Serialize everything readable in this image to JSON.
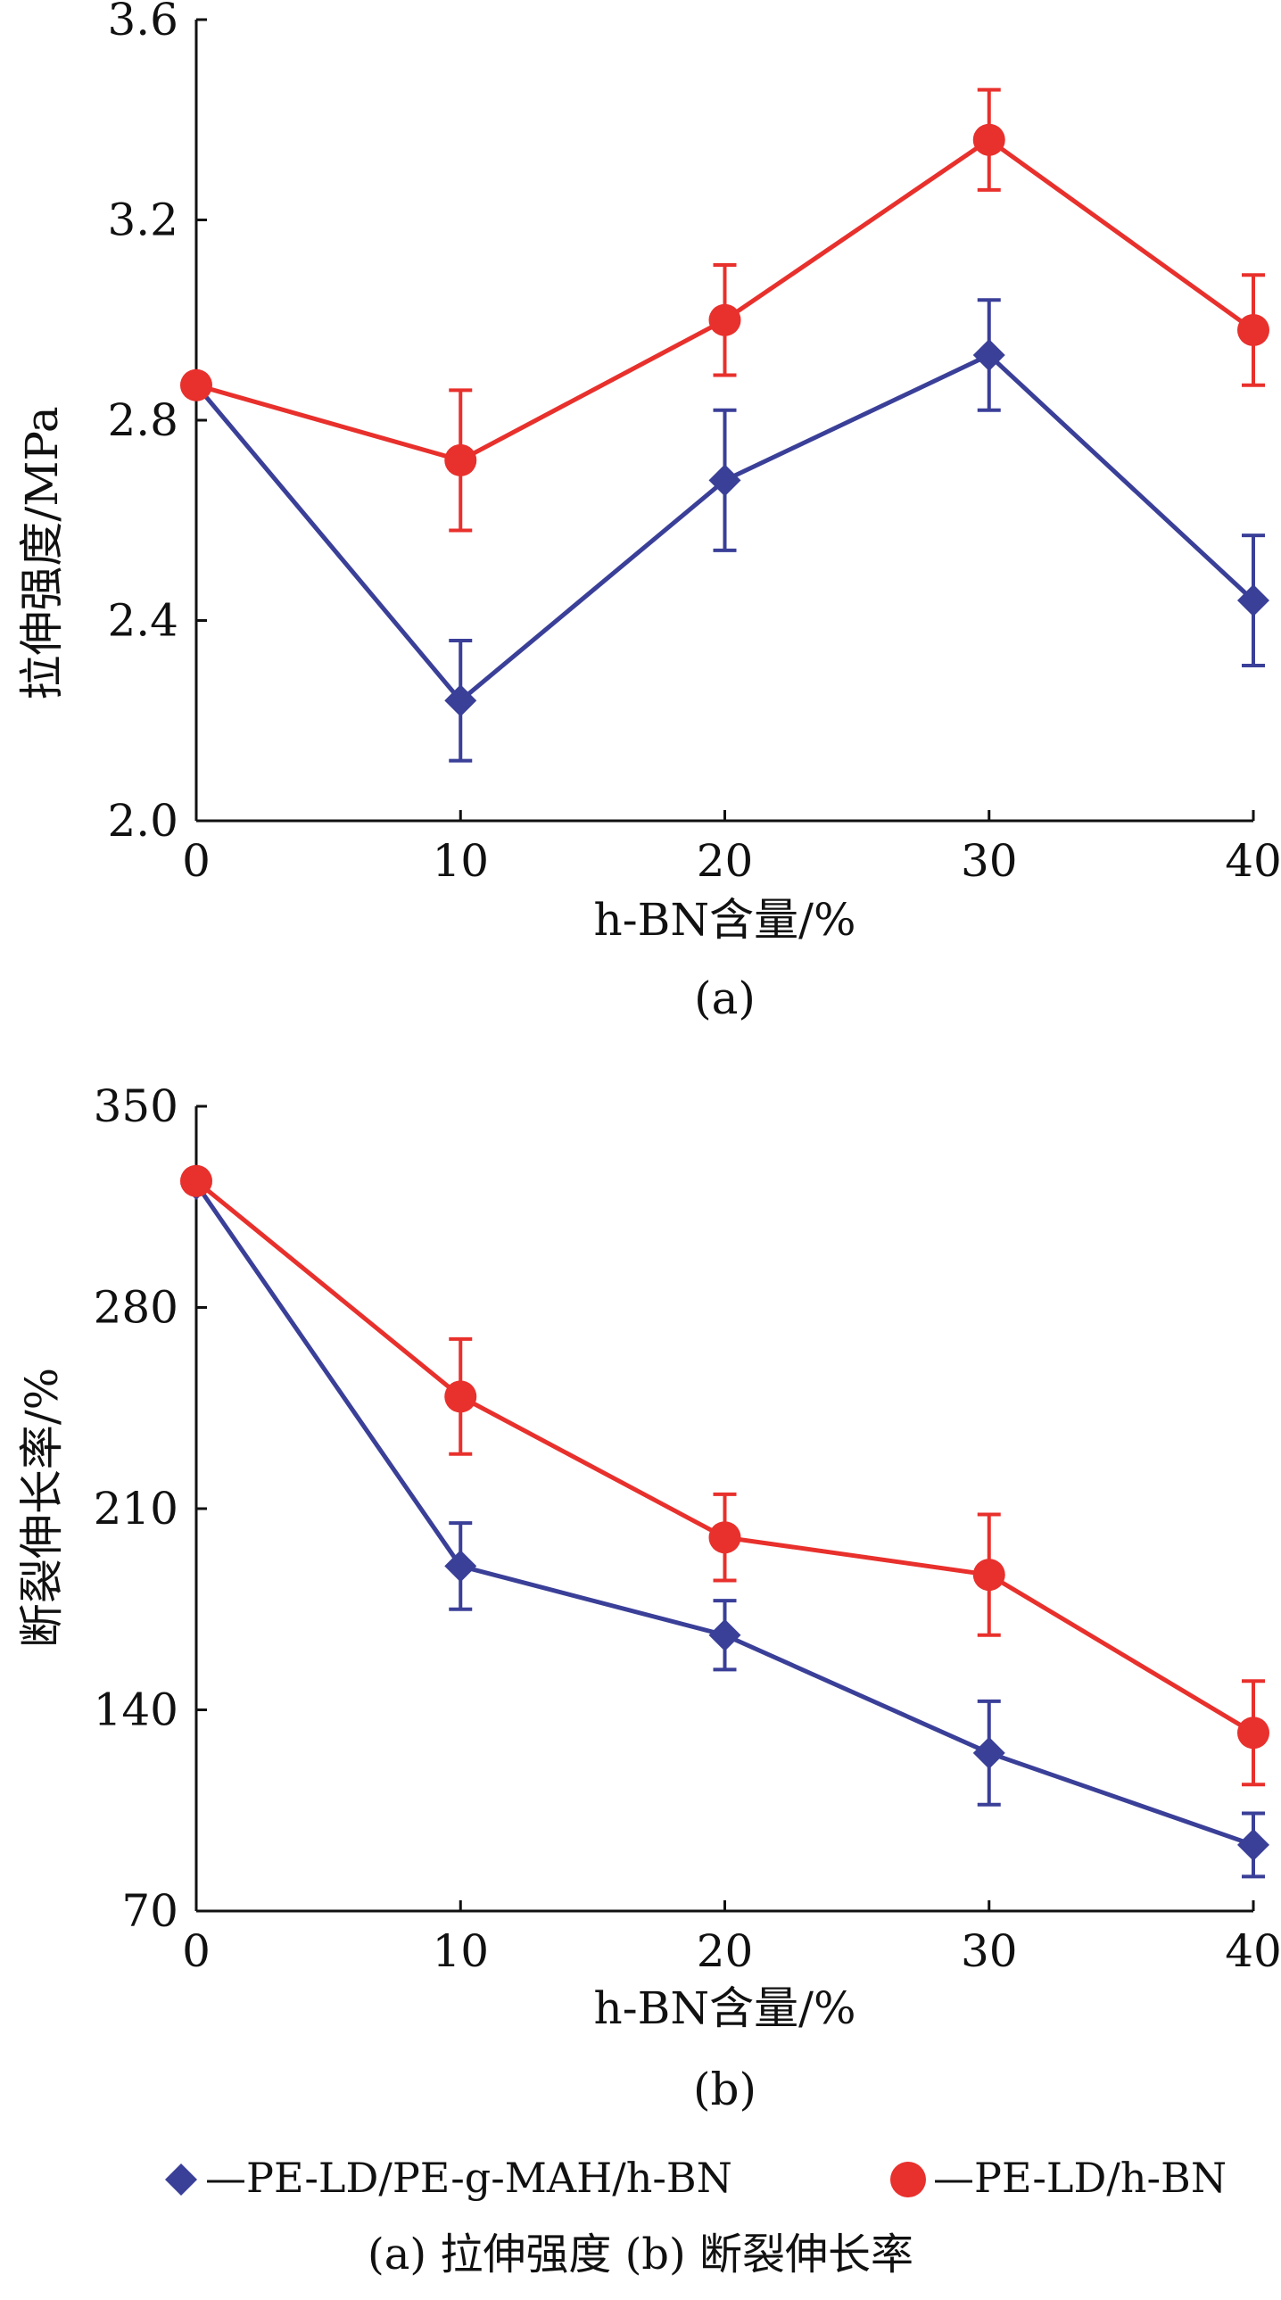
{
  "chart_data": [
    {
      "type": "line",
      "xlabel": "h-BN含量/%",
      "ylabel": "拉伸强度/MPa",
      "panel_label": "(a)",
      "x": [
        0,
        10,
        20,
        30,
        40
      ],
      "xlim": [
        0,
        40
      ],
      "ylim": [
        2.0,
        3.6
      ],
      "xticks": [
        "0",
        "10",
        "20",
        "30",
        "40"
      ],
      "yticks": [
        "2.0",
        "2.4",
        "2.8",
        "3.2",
        "3.6"
      ],
      "series": [
        {
          "name": "PE-LD/PE-g-MAH/h-BN",
          "marker": "diamond",
          "color": "#3a3f98",
          "values": [
            2.87,
            2.24,
            2.68,
            2.93,
            2.44
          ],
          "errors": [
            0,
            0.12,
            0.14,
            0.11,
            0.13
          ]
        },
        {
          "name": "PE-LD/h-BN",
          "marker": "circle",
          "color": "#e8302c",
          "values": [
            2.87,
            2.72,
            3.0,
            3.36,
            2.98
          ],
          "errors": [
            0,
            0.14,
            0.11,
            0.1,
            0.11
          ]
        }
      ]
    },
    {
      "type": "line",
      "xlabel": "h-BN含量/%",
      "ylabel": "断裂伸长率/%",
      "panel_label": "(b)",
      "x": [
        0,
        10,
        20,
        30,
        40
      ],
      "xlim": [
        0,
        40
      ],
      "ylim": [
        70,
        350
      ],
      "xticks": [
        "0",
        "10",
        "20",
        "30",
        "40"
      ],
      "yticks": [
        "70",
        "140",
        "210",
        "280",
        "350"
      ],
      "series": [
        {
          "name": "PE-LD/PE-g-MAH/h-BN",
          "marker": "diamond",
          "color": "#3a3f98",
          "values": [
            323,
            190,
            166,
            125,
            93
          ],
          "errors": [
            0,
            15,
            12,
            18,
            11
          ]
        },
        {
          "name": "PE-LD/h-BN",
          "marker": "circle",
          "color": "#e8302c",
          "values": [
            324,
            249,
            200,
            187,
            132
          ],
          "errors": [
            0,
            20,
            15,
            21,
            18
          ]
        }
      ]
    }
  ],
  "legend": {
    "items": [
      "—PE-LD/PE-g-MAH/h-BN",
      "—PE-LD/h-BN"
    ]
  },
  "caption": "(a) 拉伸强度 (b) 断裂伸长率"
}
